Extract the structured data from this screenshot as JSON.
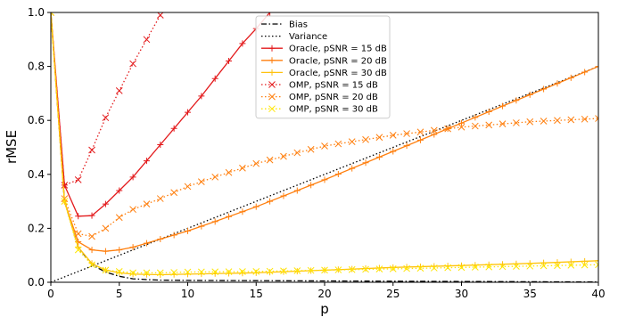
{
  "chart_data": {
    "type": "line",
    "xlabel": "p",
    "ylabel": "rMSE",
    "xlim": [
      0,
      40
    ],
    "ylim": [
      0,
      1.0
    ],
    "xticks": [
      "0",
      "5",
      "10",
      "15",
      "20",
      "25",
      "30",
      "35",
      "40"
    ],
    "yticks": [
      "0.0",
      "0.2",
      "0.4",
      "0.6",
      "0.8",
      "1.0"
    ],
    "grid": false,
    "legend_position": "top-center",
    "series": [
      {
        "name": "Bias",
        "color": "#000000",
        "linestyle": "dashdot",
        "marker": "none",
        "x": [
          0,
          1,
          2,
          3,
          4,
          5,
          6,
          7,
          8,
          10,
          15,
          20,
          25,
          30,
          35,
          40
        ],
        "y": [
          1.0,
          0.3,
          0.13,
          0.065,
          0.038,
          0.022,
          0.013,
          0.01,
          0.008,
          0.007,
          0.006,
          0.005,
          0.004,
          0.003,
          0.002,
          0.001
        ]
      },
      {
        "name": "Variance",
        "color": "#000000",
        "linestyle": "dotted",
        "marker": "none",
        "x": [
          0,
          40
        ],
        "y": [
          0.0,
          0.8
        ]
      },
      {
        "name": "Oracle, pSNR = 15 dB",
        "color": "#e31a1c",
        "linestyle": "solid",
        "marker": "plus",
        "x": [
          0,
          1,
          2,
          3,
          4,
          5,
          6,
          7,
          8,
          9,
          10,
          11,
          12,
          13,
          14,
          15,
          16
        ],
        "y": [
          1.0,
          0.36,
          0.245,
          0.247,
          0.29,
          0.34,
          0.39,
          0.45,
          0.51,
          0.57,
          0.63,
          0.69,
          0.755,
          0.82,
          0.885,
          0.94,
          1.0
        ]
      },
      {
        "name": "Oracle, pSNR = 20 dB",
        "color": "#ff7f0e",
        "linestyle": "solid",
        "marker": "plus",
        "x": [
          0,
          1,
          2,
          3,
          4,
          5,
          6,
          7,
          8,
          10,
          12,
          15,
          20,
          25,
          30,
          35,
          40
        ],
        "y": [
          1.0,
          0.3,
          0.15,
          0.12,
          0.115,
          0.12,
          0.13,
          0.145,
          0.16,
          0.19,
          0.225,
          0.28,
          0.38,
          0.485,
          0.59,
          0.695,
          0.8
        ]
      },
      {
        "name": "Oracle, pSNR = 30 dB",
        "color": "#ffc20e",
        "linestyle": "solid",
        "marker": "plus",
        "x": [
          0,
          1,
          2,
          3,
          4,
          5,
          6,
          8,
          10,
          15,
          20,
          25,
          30,
          35,
          40
        ],
        "y": [
          1.0,
          0.3,
          0.13,
          0.07,
          0.045,
          0.035,
          0.03,
          0.028,
          0.03,
          0.035,
          0.045,
          0.055,
          0.062,
          0.07,
          0.08
        ]
      },
      {
        "name": "OMP, pSNR = 15 dB",
        "color": "#e31a1c",
        "linestyle": "dotted",
        "marker": "x",
        "x": [
          0,
          1,
          2,
          3,
          4,
          5,
          6,
          7,
          8
        ],
        "y": [
          1.0,
          0.36,
          0.38,
          0.49,
          0.61,
          0.71,
          0.81,
          0.9,
          0.99
        ]
      },
      {
        "name": "OMP, pSNR = 20 dB",
        "color": "#ff7f0e",
        "linestyle": "dotted",
        "marker": "x",
        "x": [
          0,
          1,
          2,
          3,
          4,
          5,
          6,
          8,
          10,
          12,
          15,
          18,
          20,
          25,
          30,
          35,
          40
        ],
        "y": [
          1.0,
          0.31,
          0.18,
          0.17,
          0.2,
          0.24,
          0.27,
          0.31,
          0.355,
          0.39,
          0.44,
          0.48,
          0.505,
          0.545,
          0.575,
          0.595,
          0.607
        ]
      },
      {
        "name": "OMP, pSNR = 30 dB",
        "color": "#ffe600",
        "linestyle": "dotted",
        "marker": "x",
        "x": [
          0,
          1,
          2,
          3,
          4,
          5,
          6,
          8,
          10,
          15,
          20,
          25,
          30,
          35,
          40
        ],
        "y": [
          1.0,
          0.3,
          0.12,
          0.065,
          0.045,
          0.04,
          0.035,
          0.035,
          0.038,
          0.04,
          0.045,
          0.05,
          0.055,
          0.06,
          0.065
        ]
      }
    ]
  }
}
